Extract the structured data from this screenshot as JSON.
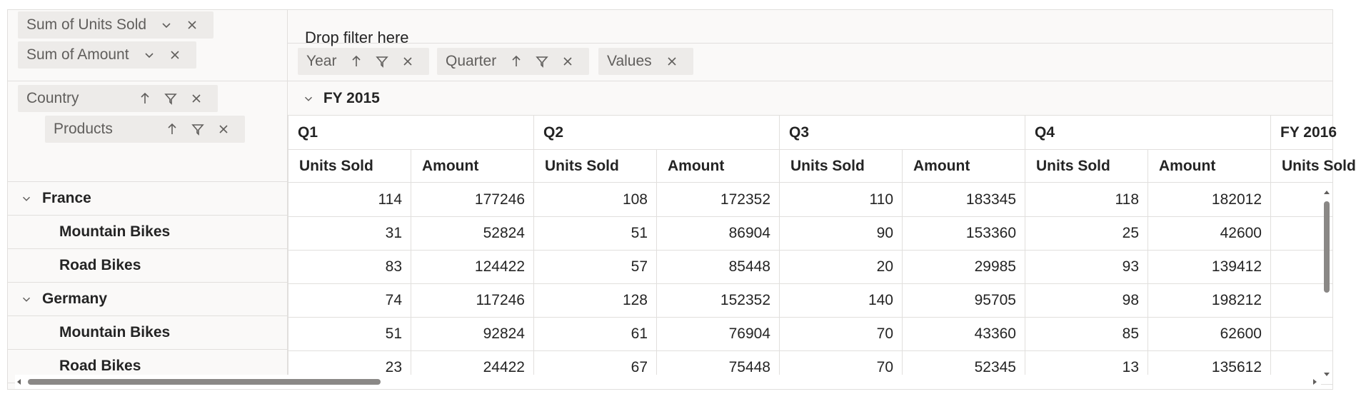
{
  "value_fields": [
    {
      "label": "Sum of Units Sold"
    },
    {
      "label": "Sum of Amount"
    }
  ],
  "drop_filter_text": "Drop filter here",
  "column_fields": [
    {
      "label": "Year"
    },
    {
      "label": "Quarter"
    },
    {
      "label": "Values"
    }
  ],
  "row_fields": [
    {
      "label": "Country"
    },
    {
      "label": "Products"
    }
  ],
  "year_header": "FY 2015",
  "next_year_header": "FY 2016",
  "quarters": [
    "Q1",
    "Q2",
    "Q3",
    "Q4"
  ],
  "measures": [
    "Units Sold",
    "Amount"
  ],
  "next_measure": "Units Sold",
  "rows": [
    {
      "label": "France",
      "level": 0,
      "values": [
        114,
        177246,
        108,
        172352,
        110,
        183345,
        118,
        182012
      ]
    },
    {
      "label": "Mountain Bikes",
      "level": 1,
      "values": [
        31,
        52824,
        51,
        86904,
        90,
        153360,
        25,
        42600
      ]
    },
    {
      "label": "Road Bikes",
      "level": 1,
      "values": [
        83,
        124422,
        57,
        85448,
        20,
        29985,
        93,
        139412
      ]
    },
    {
      "label": "Germany",
      "level": 0,
      "values": [
        74,
        117246,
        128,
        152352,
        140,
        95705,
        98,
        198212
      ]
    },
    {
      "label": "Mountain Bikes",
      "level": 1,
      "values": [
        51,
        92824,
        61,
        76904,
        70,
        43360,
        85,
        62600
      ]
    },
    {
      "label": "Road Bikes",
      "level": 1,
      "values": [
        23,
        24422,
        67,
        75448,
        70,
        52345,
        13,
        135612
      ]
    }
  ]
}
